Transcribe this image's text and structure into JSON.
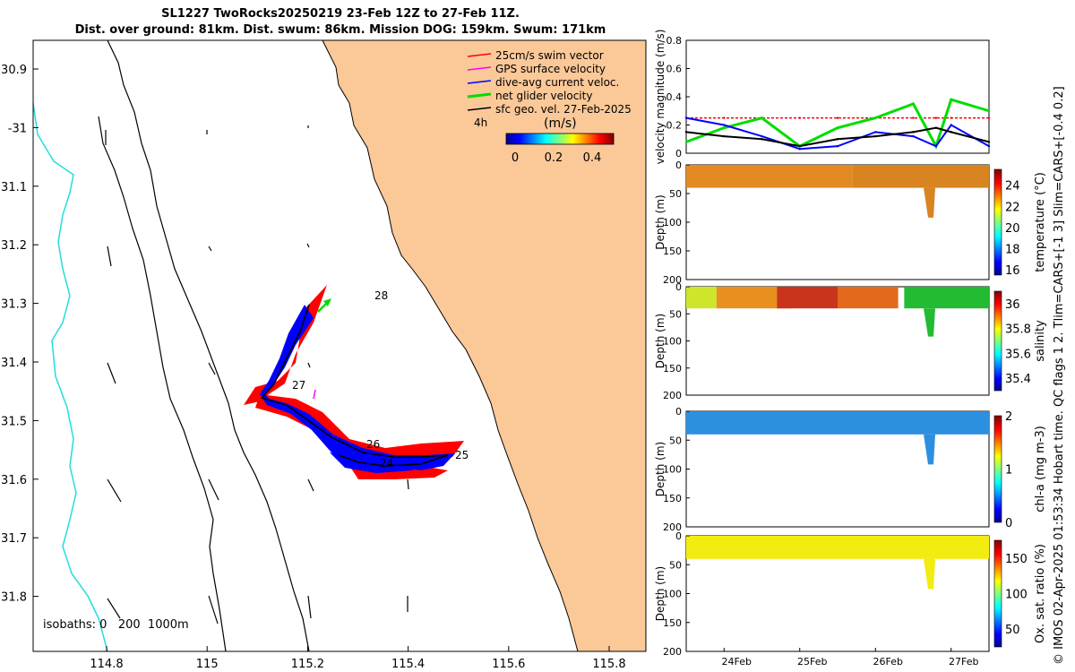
{
  "title": {
    "line1": "SL1227 TwoRocks20250219 23-Feb 12Z to 27-Feb 11Z.",
    "line2": "Dist. over ground: 81km. Dist. swum: 86km. Mission DOG: 159km. Swum: 171km"
  },
  "map": {
    "lon_ticks": [
      "114.8",
      "115",
      "115.2",
      "115.4",
      "115.6",
      "115.8"
    ],
    "lat_ticks": [
      "30.9",
      "-31",
      "31.1",
      "31.2",
      "31.3",
      "31.4",
      "31.5",
      "31.6",
      "31.7",
      "31.8"
    ],
    "legend": [
      {
        "label": "25cm/s swim vector",
        "color": "#ff0000"
      },
      {
        "label": "GPS surface velocity",
        "color": "#ff00ff"
      },
      {
        "label": "dive-avg current veloc.",
        "color": "#0000ff"
      },
      {
        "label": "net glider velocity",
        "color": "#00dd00"
      },
      {
        "label": "sfc geo. vel. 27-Feb-2025",
        "color": "#000000"
      }
    ],
    "scale_label": "4h",
    "colorbar_label": "(m/s)",
    "colorbar_ticks": [
      "0",
      "0.2",
      "0.4"
    ],
    "day_labels": [
      "28",
      "26",
      "25",
      "27",
      "24"
    ],
    "isobath_label": "isobaths: 0   200  1000m",
    "colors": {
      "land": "#fbc898",
      "coast_cyan": "#22dddd"
    }
  },
  "chart_data": [
    {
      "type": "line",
      "title": "velocity magnitude",
      "ylabel": "velocity magnitude (m/s)",
      "ylim": [
        0,
        0.8
      ],
      "yticks": [
        "0",
        "0.2",
        "0.4",
        "0.6",
        "0.8"
      ],
      "x_days": [
        23.5,
        24,
        24.5,
        25,
        25.5,
        26,
        26.5,
        26.8,
        27,
        27.5
      ],
      "series": [
        {
          "name": "swim (red dashed)",
          "color": "#ff0000",
          "values": [
            0.25,
            0.25,
            0.25,
            0.25,
            0.25,
            0.25,
            0.25,
            0.25,
            0.25,
            0.25
          ]
        },
        {
          "name": "net glider velocity",
          "color": "#00dd00",
          "values": [
            0.08,
            0.18,
            0.25,
            0.05,
            0.18,
            0.25,
            0.35,
            0.05,
            0.38,
            0.3
          ]
        },
        {
          "name": "dive-avg current",
          "color": "#0000ff",
          "values": [
            0.25,
            0.2,
            0.12,
            0.03,
            0.05,
            0.15,
            0.12,
            0.05,
            0.2,
            0.05
          ]
        },
        {
          "name": "sfc geo. vel.",
          "color": "#000000",
          "values": [
            0.15,
            0.12,
            0.1,
            0.05,
            0.1,
            0.12,
            0.15,
            0.18,
            0.15,
            0.08
          ]
        }
      ]
    },
    {
      "type": "heatmap",
      "variable": "temperature",
      "cbar_label": "temperature (°C)",
      "clim": [
        15.5,
        25.5
      ],
      "cticks": [
        "16",
        "18",
        "20",
        "22",
        "24"
      ],
      "ylabel": "Depth (m)",
      "yticks": [
        "0",
        "50",
        "100",
        "150",
        "200"
      ]
    },
    {
      "type": "heatmap",
      "variable": "salinity",
      "cbar_label": "salinity",
      "clim": [
        35.3,
        36.1
      ],
      "cticks": [
        "35.4",
        "35.6",
        "35.8",
        "36"
      ],
      "ylabel": "Depth (m)",
      "yticks": [
        "0",
        "50",
        "100",
        "150",
        "200"
      ]
    },
    {
      "type": "heatmap",
      "variable": "chl-a",
      "cbar_label": "chl-a (mg m-3)",
      "clim": [
        0,
        2
      ],
      "cticks": [
        "0",
        "1",
        "2"
      ],
      "ylabel": "Depth (m)",
      "yticks": [
        "0",
        "50",
        "100",
        "150",
        "200"
      ]
    },
    {
      "type": "heatmap",
      "variable": "oxygen saturation",
      "cbar_label": "Ox. sat. ratio (%)",
      "clim": [
        25,
        175
      ],
      "cticks": [
        "50",
        "100",
        "150"
      ],
      "ylabel": "Depth (m)",
      "yticks": [
        "0",
        "50",
        "100",
        "150",
        "200"
      ]
    }
  ],
  "time_axis": {
    "labels": [
      "24Feb",
      "25Feb",
      "26Feb",
      "27Feb"
    ]
  },
  "side_note": "© IMOS 02-Apr-2025 01:53:34 Hobart time. QC flags 1  2. Tlim=CARS+[-1 3] Slim=CARS+[-0.4 0.2]"
}
